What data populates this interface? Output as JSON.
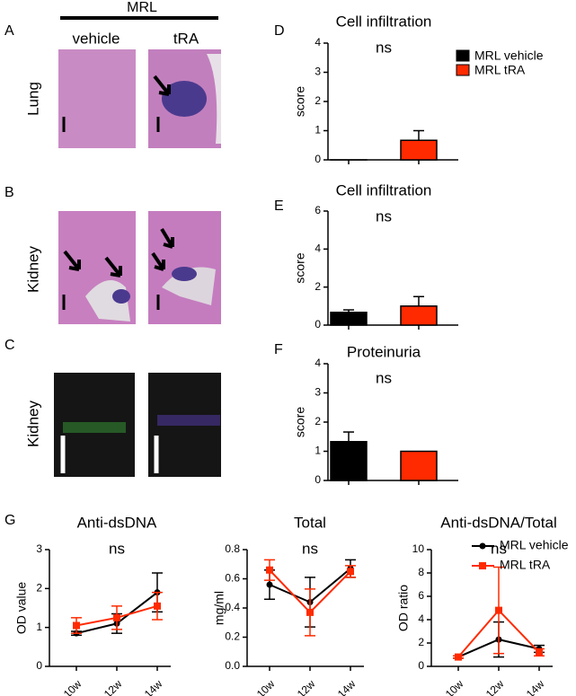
{
  "figure": {
    "panel_labels": [
      "A",
      "B",
      "C",
      "D",
      "E",
      "F",
      "G"
    ],
    "group_label": "MRL",
    "column_labels": [
      "vehicle",
      "tRA"
    ],
    "row_labels": [
      "Lung",
      "Kidney",
      "Kidney"
    ]
  },
  "chart_data": [
    {
      "type": "bar",
      "title": "Cell infiltration",
      "y_label": "score",
      "annotation": "ns",
      "categories": [
        null,
        null
      ],
      "values": [
        0,
        0.67
      ],
      "errors": [
        0,
        0.33
      ],
      "colors": [
        "#000000",
        "#ff2a00"
      ],
      "legend": [
        "MRL vehicle",
        "MRL tRA"
      ],
      "ylim": [
        0,
        4
      ],
      "yticks": [
        0,
        1,
        2,
        3,
        4
      ]
    },
    {
      "type": "bar",
      "title": "Cell infiltration",
      "y_label": "score",
      "annotation": "ns",
      "categories": [
        null,
        null
      ],
      "values": [
        0.67,
        1.0
      ],
      "errors": [
        0.13,
        0.5
      ],
      "colors": [
        "#000000",
        "#ff2a00"
      ],
      "ylim": [
        0,
        6
      ],
      "yticks": [
        0,
        2,
        4,
        6
      ]
    },
    {
      "type": "bar",
      "title": "Proteinuria",
      "y_label": "score",
      "annotation": "ns",
      "categories": [
        null,
        null
      ],
      "values": [
        1.33,
        1.0
      ],
      "errors": [
        0.33,
        0
      ],
      "colors": [
        "#000000",
        "#ff2a00"
      ],
      "ylim": [
        0,
        4
      ],
      "yticks": [
        0,
        1,
        2,
        3,
        4
      ]
    },
    {
      "type": "line",
      "title": "Anti-dsDNA",
      "y_label": "OD value",
      "annotation": "ns",
      "categories": [
        "10w",
        "12w",
        "14w"
      ],
      "series": [
        {
          "color": "#000000",
          "marker": "circle",
          "values": [
            0.85,
            1.1,
            1.9
          ],
          "errors": [
            0.05,
            0.25,
            0.5
          ]
        },
        {
          "color": "#ff2a00",
          "marker": "square",
          "values": [
            1.05,
            1.25,
            1.55
          ],
          "errors": [
            0.2,
            0.3,
            0.35
          ]
        }
      ],
      "ylim": [
        0,
        3
      ],
      "yticks": [
        0,
        1,
        2,
        3
      ]
    },
    {
      "type": "line",
      "title": "Total",
      "y_label": "mg/ml",
      "annotation": "ns",
      "categories": [
        "10w",
        "12w",
        "14w"
      ],
      "series": [
        {
          "color": "#000000",
          "marker": "circle",
          "values": [
            0.56,
            0.44,
            0.67
          ],
          "errors": [
            0.1,
            0.17,
            0.06
          ]
        },
        {
          "color": "#ff2a00",
          "marker": "square",
          "values": [
            0.66,
            0.37,
            0.65
          ],
          "errors": [
            0.07,
            0.16,
            0.04
          ]
        }
      ],
      "ylim": [
        0,
        0.8
      ],
      "yticks": [
        {
          "value": 0,
          "label": "0.0"
        },
        0.2,
        0.4,
        0.6,
        0.8
      ]
    },
    {
      "type": "line",
      "title": "Anti-dsDNA/Total",
      "y_label": "OD ratio",
      "annotation": "ns",
      "categories": [
        "10w",
        "12w",
        "14w"
      ],
      "series": [
        {
          "name": "MRL vehicle",
          "color": "#000000",
          "marker": "circle",
          "values": [
            0.8,
            2.3,
            1.5
          ],
          "errors": [
            0.1,
            1.5,
            0.3
          ]
        },
        {
          "name": "MRL tRA",
          "color": "#ff2a00",
          "marker": "square",
          "values": [
            0.8,
            4.8,
            1.2
          ],
          "errors": [
            0.1,
            3.7,
            0.3
          ]
        }
      ],
      "ylim": [
        0,
        10
      ],
      "yticks": [
        0,
        2,
        4,
        6,
        8,
        10
      ]
    }
  ]
}
